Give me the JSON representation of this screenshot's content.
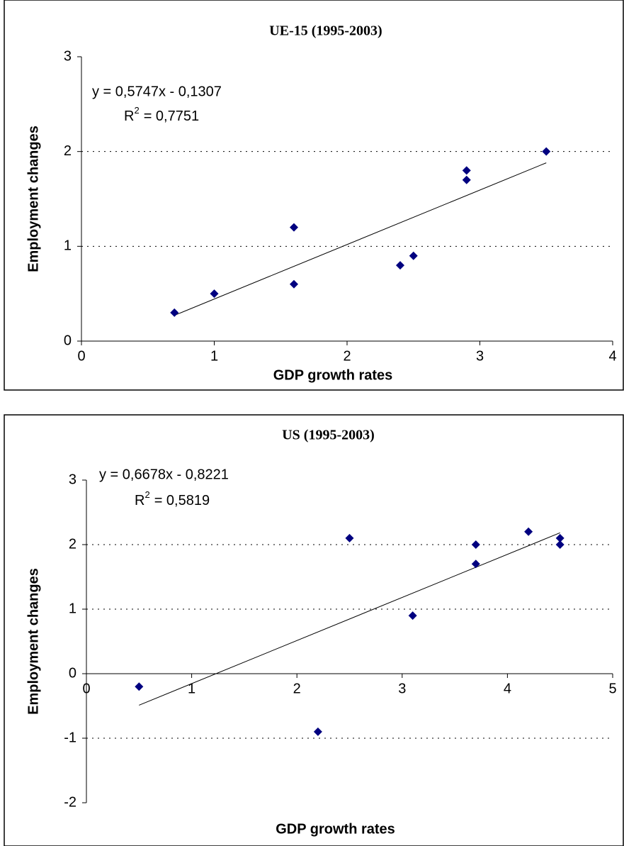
{
  "chart_data": [
    {
      "type": "scatter",
      "title": "UE-15 (1995-2003)",
      "x_label": "GDP growth rates",
      "y_label": "Employment changes",
      "x": [
        0.7,
        1.0,
        1.6,
        1.6,
        2.4,
        2.5,
        2.9,
        2.9,
        3.5
      ],
      "values": [
        0.3,
        0.5,
        1.2,
        0.6,
        0.8,
        0.9,
        1.8,
        1.7,
        2.0
      ],
      "color": "#000080",
      "xlim": [
        0,
        4
      ],
      "xticks": [
        0,
        1,
        2,
        3,
        4
      ],
      "ylim": [
        0,
        3
      ],
      "yticks": [
        0,
        1,
        2,
        3
      ],
      "grid": true,
      "trendline": {
        "equation": "y = 0,5747x - 0,1307",
        "slope": 0.5747,
        "intercept": -0.1307,
        "r2_symbol": "R",
        "r2_exponent": "2",
        "r2_value": "= 0,7751"
      }
    },
    {
      "type": "scatter",
      "title": "US (1995-2003)",
      "x_label": "GDP growth rates",
      "y_label": "Employment changes",
      "x": [
        0.5,
        2.2,
        2.5,
        3.1,
        3.7,
        3.7,
        4.2,
        4.5,
        4.5
      ],
      "values": [
        -0.2,
        -0.9,
        2.1,
        0.9,
        2.0,
        1.7,
        2.2,
        2.1,
        2.0
      ],
      "color": "#000080",
      "xlim": [
        0,
        5
      ],
      "xticks": [
        0,
        1,
        2,
        3,
        4,
        5
      ],
      "ylim": [
        -2,
        3
      ],
      "yticks": [
        -2,
        -1,
        0,
        1,
        2,
        3
      ],
      "grid": true,
      "trendline": {
        "equation": "y = 0,6678x - 0,8221",
        "slope": 0.6678,
        "intercept": -0.8221,
        "r2_symbol": "R",
        "r2_exponent": "2",
        "r2_value": "= 0,5819"
      }
    }
  ]
}
